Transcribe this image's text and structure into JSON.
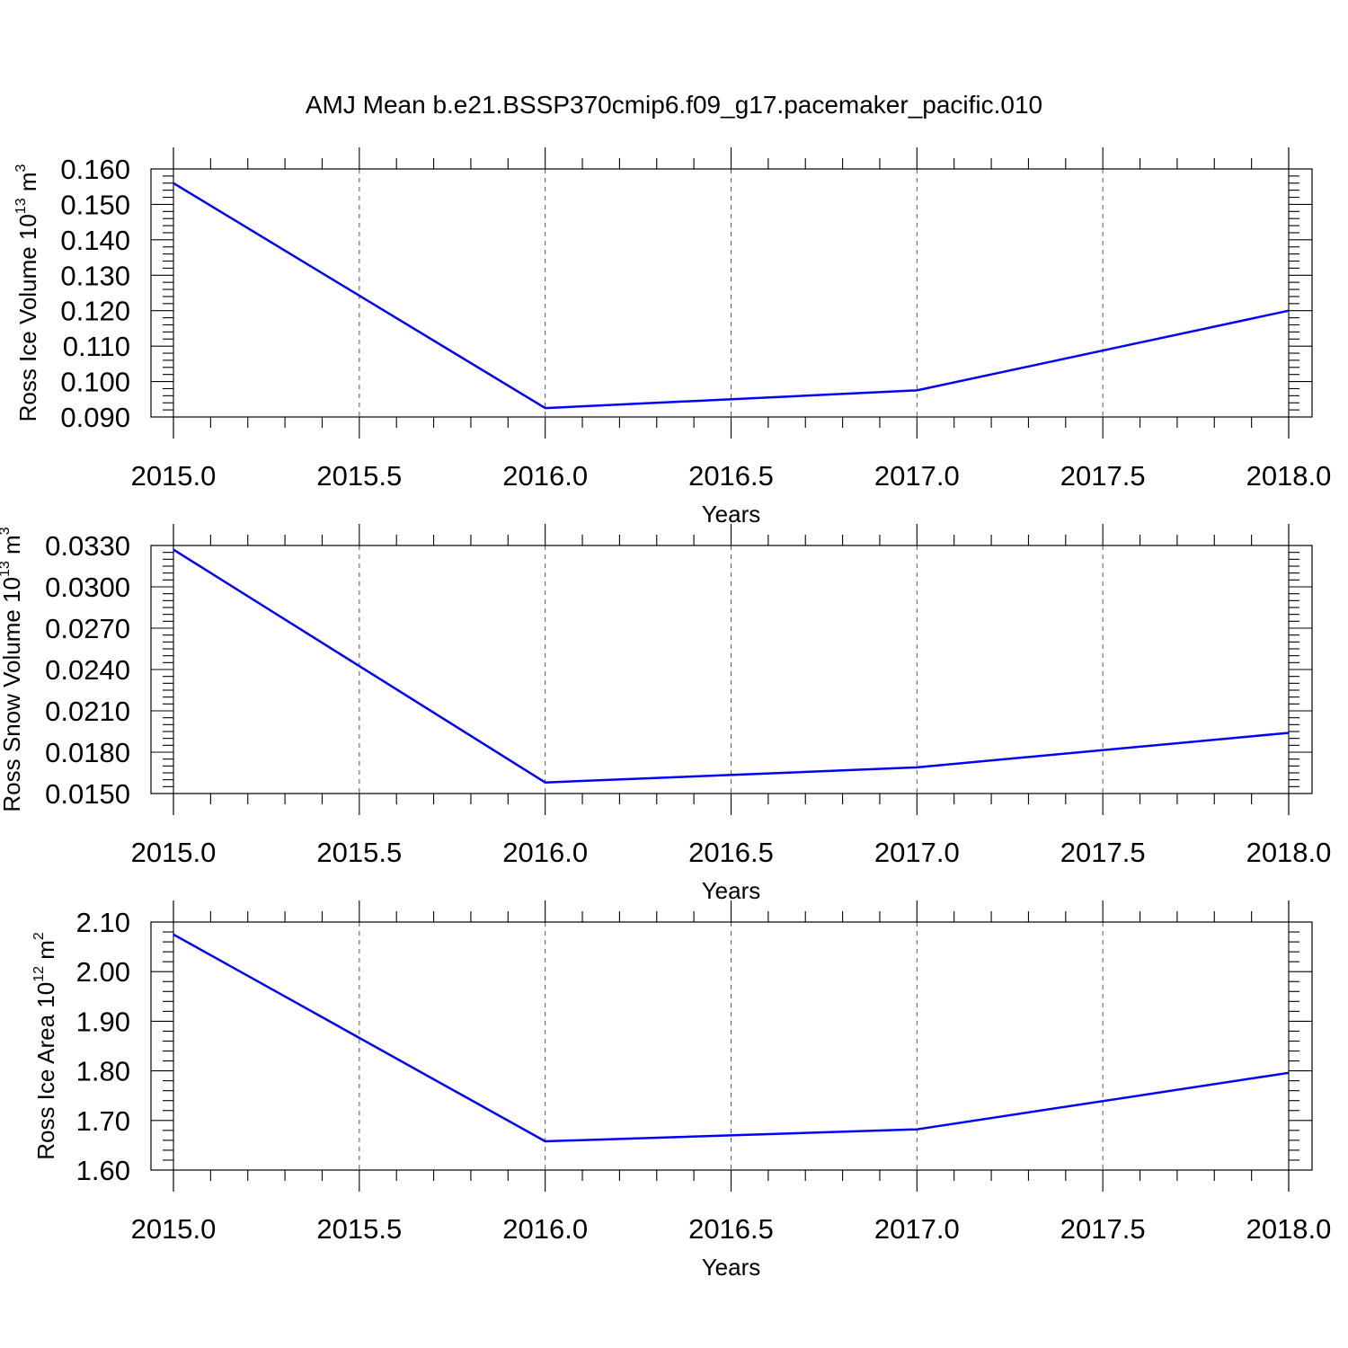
{
  "title": "AMJ Mean b.e21.BSSP370cmip6.f09_g17.pacemaker_pacific.010",
  "colors": {
    "line": "#0000ff",
    "axis": "#000000",
    "grid": "#555555"
  },
  "chart_data": [
    {
      "type": "line",
      "xlabel": "Years",
      "ylabel": {
        "text": "Ross Ice Volume 10",
        "sup": "13",
        "unit": " m",
        "unit_sup": "3"
      },
      "x": [
        2015,
        2016,
        2017,
        2018
      ],
      "values": [
        0.156,
        0.0925,
        0.0975,
        0.12
      ],
      "xlim": [
        2015,
        2018
      ],
      "ylim": [
        0.09,
        0.16
      ],
      "xticks": [
        2015.0,
        2015.5,
        2016.0,
        2016.5,
        2017.0,
        2017.5,
        2018.0
      ],
      "xtick_labels": [
        "2015.0",
        "2015.5",
        "2016.0",
        "2016.5",
        "2017.0",
        "2017.5",
        "2018.0"
      ],
      "yticks": [
        0.09,
        0.1,
        0.11,
        0.12,
        0.13,
        0.14,
        0.15,
        0.16
      ],
      "ytick_labels": [
        "0.090",
        "0.100",
        "0.110",
        "0.120",
        "0.130",
        "0.140",
        "0.150",
        "0.160"
      ],
      "y_minor_per_major": 5,
      "grid": "vertical-dashed"
    },
    {
      "type": "line",
      "xlabel": "Years",
      "ylabel": {
        "text": "Ross Snow Volume 10",
        "sup": "13",
        "unit": " m",
        "unit_sup": "3"
      },
      "x": [
        2015,
        2016,
        2017,
        2018
      ],
      "values": [
        0.0327,
        0.0158,
        0.0169,
        0.0194
      ],
      "xlim": [
        2015,
        2018
      ],
      "ylim": [
        0.015,
        0.033
      ],
      "xticks": [
        2015.0,
        2015.5,
        2016.0,
        2016.5,
        2017.0,
        2017.5,
        2018.0
      ],
      "xtick_labels": [
        "2015.0",
        "2015.5",
        "2016.0",
        "2016.5",
        "2017.0",
        "2017.5",
        "2018.0"
      ],
      "yticks": [
        0.015,
        0.018,
        0.021,
        0.024,
        0.027,
        0.03,
        0.033
      ],
      "ytick_labels": [
        "0.0150",
        "0.0180",
        "0.0210",
        "0.0240",
        "0.0270",
        "0.0300",
        "0.0330"
      ],
      "y_minor_per_major": 6,
      "grid": "vertical-dashed"
    },
    {
      "type": "line",
      "xlabel": "Years",
      "ylabel": {
        "text": "Ross Ice Area 10",
        "sup": "12",
        "unit": " m",
        "unit_sup": "2"
      },
      "x": [
        2015,
        2016,
        2017,
        2018
      ],
      "values": [
        2.075,
        1.658,
        1.682,
        1.796
      ],
      "xlim": [
        2015,
        2018
      ],
      "ylim": [
        1.6,
        2.1
      ],
      "xticks": [
        2015.0,
        2015.5,
        2016.0,
        2016.5,
        2017.0,
        2017.5,
        2018.0
      ],
      "xtick_labels": [
        "2015.0",
        "2015.5",
        "2016.0",
        "2016.5",
        "2017.0",
        "2017.5",
        "2018.0"
      ],
      "yticks": [
        1.6,
        1.7,
        1.8,
        1.9,
        2.0,
        2.1
      ],
      "ytick_labels": [
        "1.60",
        "1.70",
        "1.80",
        "1.90",
        "2.00",
        "2.10"
      ],
      "y_minor_per_major": 5,
      "grid": "vertical-dashed"
    }
  ]
}
